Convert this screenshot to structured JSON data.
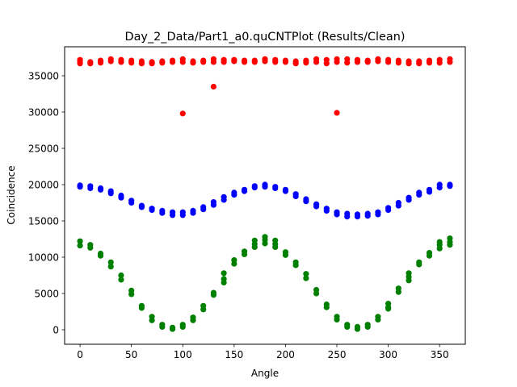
{
  "chart_data": {
    "type": "scatter",
    "title": "Day_2_Data/Part1_a0.quCNTPlot (Results/Clean)",
    "xlabel": "Angle",
    "ylabel": "Coincidence",
    "xlim": [
      -15,
      375
    ],
    "ylim": [
      -2000,
      39000
    ],
    "xticks": [
      0,
      50,
      100,
      150,
      200,
      250,
      300,
      350
    ],
    "yticks": [
      0,
      5000,
      10000,
      15000,
      20000,
      25000,
      30000,
      35000
    ],
    "grid": false,
    "series": [
      {
        "color": "#ff0000",
        "points": [
          [
            0,
            37000
          ],
          [
            0,
            36700
          ],
          [
            0,
            37200
          ],
          [
            10,
            36900
          ],
          [
            10,
            36700
          ],
          [
            20,
            37100
          ],
          [
            20,
            36800
          ],
          [
            30,
            37300
          ],
          [
            30,
            37000
          ],
          [
            40,
            37200
          ],
          [
            40,
            36900
          ],
          [
            50,
            37100
          ],
          [
            50,
            36800
          ],
          [
            60,
            37000
          ],
          [
            60,
            36700
          ],
          [
            70,
            36900
          ],
          [
            70,
            36700
          ],
          [
            80,
            37000
          ],
          [
            80,
            36800
          ],
          [
            90,
            37100
          ],
          [
            90,
            36900
          ],
          [
            100,
            37300
          ],
          [
            100,
            36900
          ],
          [
            100,
            29800
          ],
          [
            110,
            37000
          ],
          [
            110,
            36800
          ],
          [
            120,
            37100
          ],
          [
            120,
            36900
          ],
          [
            130,
            37300
          ],
          [
            130,
            36900
          ],
          [
            130,
            33500
          ],
          [
            140,
            37200
          ],
          [
            140,
            36900
          ],
          [
            150,
            37200
          ],
          [
            150,
            37000
          ],
          [
            160,
            37100
          ],
          [
            160,
            36900
          ],
          [
            170,
            37100
          ],
          [
            170,
            36900
          ],
          [
            180,
            37300
          ],
          [
            180,
            37000
          ],
          [
            190,
            37200
          ],
          [
            190,
            36900
          ],
          [
            200,
            37100
          ],
          [
            200,
            36900
          ],
          [
            210,
            37000
          ],
          [
            210,
            36700
          ],
          [
            220,
            37100
          ],
          [
            220,
            36800
          ],
          [
            230,
            37300
          ],
          [
            230,
            36900
          ],
          [
            240,
            37200
          ],
          [
            240,
            36700
          ],
          [
            250,
            37300
          ],
          [
            250,
            36900
          ],
          [
            250,
            29900
          ],
          [
            260,
            37300
          ],
          [
            260,
            36800
          ],
          [
            270,
            37200
          ],
          [
            270,
            36900
          ],
          [
            280,
            37100
          ],
          [
            280,
            36900
          ],
          [
            290,
            37300
          ],
          [
            290,
            37000
          ],
          [
            300,
            37200
          ],
          [
            300,
            36900
          ],
          [
            310,
            37100
          ],
          [
            310,
            36800
          ],
          [
            320,
            37000
          ],
          [
            320,
            36700
          ],
          [
            330,
            37000
          ],
          [
            330,
            36700
          ],
          [
            340,
            37100
          ],
          [
            340,
            36800
          ],
          [
            350,
            37200
          ],
          [
            350,
            36800
          ],
          [
            360,
            37300
          ],
          [
            360,
            36900
          ]
        ]
      },
      {
        "color": "#0000ff",
        "points": [
          [
            0,
            19900
          ],
          [
            0,
            19700
          ],
          [
            10,
            19800
          ],
          [
            10,
            19500
          ],
          [
            20,
            19500
          ],
          [
            20,
            19300
          ],
          [
            30,
            19100
          ],
          [
            30,
            18800
          ],
          [
            40,
            18500
          ],
          [
            40,
            18200
          ],
          [
            50,
            17800
          ],
          [
            50,
            17500
          ],
          [
            60,
            17100
          ],
          [
            60,
            16900
          ],
          [
            70,
            16700
          ],
          [
            70,
            16500
          ],
          [
            80,
            16400
          ],
          [
            80,
            16100
          ],
          [
            90,
            16200
          ],
          [
            90,
            15800
          ],
          [
            100,
            16200
          ],
          [
            100,
            15800
          ],
          [
            110,
            16400
          ],
          [
            110,
            16100
          ],
          [
            120,
            16900
          ],
          [
            120,
            16600
          ],
          [
            130,
            17600
          ],
          [
            130,
            17200
          ],
          [
            140,
            18300
          ],
          [
            140,
            17900
          ],
          [
            150,
            18900
          ],
          [
            150,
            18600
          ],
          [
            160,
            19300
          ],
          [
            160,
            19100
          ],
          [
            170,
            19800
          ],
          [
            170,
            19600
          ],
          [
            180,
            20000
          ],
          [
            180,
            19700
          ],
          [
            190,
            19700
          ],
          [
            190,
            19500
          ],
          [
            200,
            19300
          ],
          [
            200,
            19100
          ],
          [
            210,
            18700
          ],
          [
            210,
            18400
          ],
          [
            220,
            18000
          ],
          [
            220,
            17700
          ],
          [
            230,
            17300
          ],
          [
            230,
            17000
          ],
          [
            240,
            16700
          ],
          [
            240,
            16400
          ],
          [
            250,
            16200
          ],
          [
            250,
            15900
          ],
          [
            260,
            16000
          ],
          [
            260,
            15600
          ],
          [
            270,
            15900
          ],
          [
            270,
            15600
          ],
          [
            280,
            16000
          ],
          [
            280,
            15700
          ],
          [
            290,
            16200
          ],
          [
            290,
            15900
          ],
          [
            300,
            16800
          ],
          [
            300,
            16500
          ],
          [
            310,
            17500
          ],
          [
            310,
            17100
          ],
          [
            320,
            18200
          ],
          [
            320,
            17900
          ],
          [
            330,
            18900
          ],
          [
            330,
            18600
          ],
          [
            340,
            19300
          ],
          [
            340,
            19000
          ],
          [
            350,
            20000
          ],
          [
            350,
            19600
          ],
          [
            360,
            20000
          ],
          [
            360,
            19800
          ]
        ]
      },
      {
        "color": "#008000",
        "points": [
          [
            0,
            12200
          ],
          [
            0,
            11600
          ],
          [
            10,
            11700
          ],
          [
            10,
            11300
          ],
          [
            20,
            10500
          ],
          [
            20,
            10200
          ],
          [
            30,
            9300
          ],
          [
            30,
            8700
          ],
          [
            40,
            7500
          ],
          [
            40,
            6900
          ],
          [
            50,
            5400
          ],
          [
            50,
            4900
          ],
          [
            60,
            3300
          ],
          [
            60,
            3000
          ],
          [
            70,
            1800
          ],
          [
            70,
            1300
          ],
          [
            80,
            700
          ],
          [
            80,
            400
          ],
          [
            90,
            300
          ],
          [
            90,
            100
          ],
          [
            100,
            700
          ],
          [
            100,
            400
          ],
          [
            110,
            1700
          ],
          [
            110,
            1300
          ],
          [
            120,
            3300
          ],
          [
            120,
            2800
          ],
          [
            130,
            5100
          ],
          [
            130,
            4800
          ],
          [
            140,
            7800
          ],
          [
            140,
            7000
          ],
          [
            140,
            6500
          ],
          [
            150,
            9600
          ],
          [
            150,
            9100
          ],
          [
            160,
            10800
          ],
          [
            160,
            10400
          ],
          [
            170,
            12300
          ],
          [
            170,
            11800
          ],
          [
            170,
            11400
          ],
          [
            180,
            12800
          ],
          [
            180,
            12400
          ],
          [
            180,
            11900
          ],
          [
            190,
            12300
          ],
          [
            190,
            11800
          ],
          [
            190,
            11400
          ],
          [
            200,
            10700
          ],
          [
            200,
            10300
          ],
          [
            210,
            9300
          ],
          [
            210,
            8900
          ],
          [
            220,
            7700
          ],
          [
            220,
            7100
          ],
          [
            230,
            5500
          ],
          [
            230,
            5000
          ],
          [
            240,
            3500
          ],
          [
            240,
            3100
          ],
          [
            250,
            1800
          ],
          [
            250,
            1400
          ],
          [
            260,
            700
          ],
          [
            260,
            400
          ],
          [
            270,
            400
          ],
          [
            270,
            100
          ],
          [
            280,
            700
          ],
          [
            280,
            400
          ],
          [
            290,
            1800
          ],
          [
            290,
            1400
          ],
          [
            300,
            3600
          ],
          [
            300,
            3100
          ],
          [
            300,
            2900
          ],
          [
            310,
            5700
          ],
          [
            310,
            5200
          ],
          [
            320,
            7800
          ],
          [
            320,
            7300
          ],
          [
            320,
            6800
          ],
          [
            330,
            9300
          ],
          [
            330,
            9000
          ],
          [
            340,
            10600
          ],
          [
            340,
            10200
          ],
          [
            350,
            12100
          ],
          [
            350,
            11700
          ],
          [
            350,
            11200
          ],
          [
            360,
            12600
          ],
          [
            360,
            12100
          ],
          [
            360,
            11700
          ]
        ]
      }
    ]
  }
}
